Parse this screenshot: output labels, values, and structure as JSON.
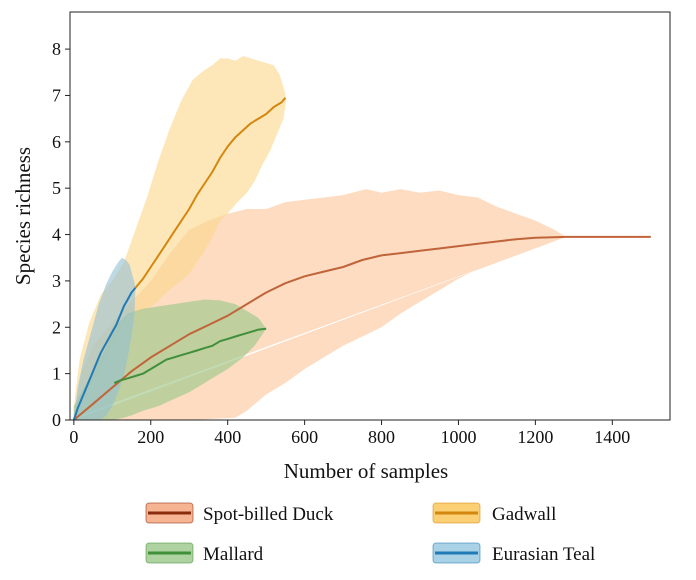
{
  "chart_data": {
    "type": "line",
    "title": "",
    "xlabel": "Number of samples",
    "ylabel": "Species richness",
    "xlim": [
      -10,
      1550
    ],
    "ylim": [
      0,
      8.8
    ],
    "xticks": [
      0,
      200,
      400,
      600,
      800,
      1000,
      1200,
      1400
    ],
    "yticks": [
      0,
      1,
      2,
      3,
      4,
      5,
      6,
      7,
      8
    ],
    "legend_position": "bottom",
    "series": [
      {
        "name": "Spot-billed Duck",
        "line_color": "#c0643a",
        "fill_color": "#fcc597",
        "legend_line": "#8b2b0d",
        "legend_fill": "#f7b493",
        "points": [
          [
            0,
            0
          ],
          [
            50,
            0.35
          ],
          [
            100,
            0.7
          ],
          [
            150,
            1.05
          ],
          [
            200,
            1.35
          ],
          [
            250,
            1.6
          ],
          [
            300,
            1.85
          ],
          [
            350,
            2.05
          ],
          [
            400,
            2.25
          ],
          [
            450,
            2.5
          ],
          [
            500,
            2.75
          ],
          [
            550,
            2.95
          ],
          [
            600,
            3.1
          ],
          [
            650,
            3.2
          ],
          [
            700,
            3.3
          ],
          [
            750,
            3.45
          ],
          [
            800,
            3.55
          ],
          [
            850,
            3.6
          ],
          [
            900,
            3.65
          ],
          [
            950,
            3.7
          ],
          [
            1000,
            3.75
          ],
          [
            1050,
            3.8
          ],
          [
            1100,
            3.85
          ],
          [
            1150,
            3.9
          ],
          [
            1200,
            3.93
          ],
          [
            1280,
            3.95
          ],
          [
            1400,
            3.95
          ],
          [
            1500,
            3.95
          ]
        ],
        "upper": [
          [
            0,
            0.05
          ],
          [
            20,
            1.0
          ],
          [
            50,
            1.6
          ],
          [
            100,
            2.1
          ],
          [
            150,
            2.55
          ],
          [
            200,
            3.0
          ],
          [
            250,
            3.6
          ],
          [
            300,
            4.1
          ],
          [
            350,
            4.3
          ],
          [
            400,
            4.45
          ],
          [
            450,
            4.55
          ],
          [
            500,
            4.55
          ],
          [
            550,
            4.7
          ],
          [
            600,
            4.75
          ],
          [
            650,
            4.8
          ],
          [
            700,
            4.85
          ],
          [
            760,
            4.98
          ],
          [
            800,
            4.9
          ],
          [
            850,
            4.98
          ],
          [
            900,
            4.9
          ],
          [
            950,
            4.95
          ],
          [
            1000,
            4.85
          ],
          [
            1050,
            4.8
          ],
          [
            1100,
            4.6
          ],
          [
            1150,
            4.45
          ],
          [
            1200,
            4.3
          ],
          [
            1250,
            4.1
          ],
          [
            1280,
            3.95
          ]
        ],
        "lower": [
          [
            0,
            0
          ],
          [
            300,
            0
          ],
          [
            420,
            0.05
          ],
          [
            450,
            0.2
          ],
          [
            500,
            0.55
          ],
          [
            550,
            0.8
          ],
          [
            600,
            1.1
          ],
          [
            650,
            1.35
          ],
          [
            700,
            1.6
          ],
          [
            750,
            1.8
          ],
          [
            800,
            2.0
          ],
          [
            850,
            2.3
          ],
          [
            900,
            2.55
          ],
          [
            950,
            2.8
          ],
          [
            1000,
            3.05
          ],
          [
            1050,
            3.25
          ],
          [
            1100,
            3.5
          ],
          [
            1150,
            3.65
          ],
          [
            1200,
            3.8
          ],
          [
            1280,
            3.95
          ]
        ]
      },
      {
        "name": "Gadwall",
        "line_color": "#d4870e",
        "fill_color": "#fcd78a",
        "legend_line": "#d4870e",
        "legend_fill": "#fbcf73",
        "points": [
          [
            160,
            2.85
          ],
          [
            180,
            3.05
          ],
          [
            200,
            3.3
          ],
          [
            220,
            3.55
          ],
          [
            240,
            3.8
          ],
          [
            260,
            4.05
          ],
          [
            280,
            4.3
          ],
          [
            300,
            4.55
          ],
          [
            320,
            4.85
          ],
          [
            340,
            5.1
          ],
          [
            360,
            5.35
          ],
          [
            380,
            5.65
          ],
          [
            400,
            5.9
          ],
          [
            420,
            6.1
          ],
          [
            440,
            6.25
          ],
          [
            460,
            6.4
          ],
          [
            480,
            6.5
          ],
          [
            500,
            6.6
          ],
          [
            520,
            6.75
          ],
          [
            540,
            6.85
          ],
          [
            550,
            6.95
          ]
        ],
        "upper": [
          [
            0,
            0.3
          ],
          [
            15,
            1.3
          ],
          [
            40,
            2.1
          ],
          [
            70,
            2.7
          ],
          [
            100,
            3.0
          ],
          [
            130,
            3.4
          ],
          [
            160,
            4.1
          ],
          [
            190,
            4.8
          ],
          [
            220,
            5.6
          ],
          [
            250,
            6.3
          ],
          [
            280,
            6.9
          ],
          [
            310,
            7.35
          ],
          [
            340,
            7.55
          ],
          [
            360,
            7.65
          ],
          [
            380,
            7.8
          ],
          [
            400,
            7.8
          ],
          [
            420,
            7.75
          ],
          [
            440,
            7.85
          ],
          [
            460,
            7.8
          ],
          [
            480,
            7.75
          ],
          [
            500,
            7.7
          ],
          [
            520,
            7.65
          ],
          [
            535,
            7.45
          ],
          [
            548,
            7.1
          ],
          [
            552,
            6.9
          ]
        ],
        "lower": [
          [
            552,
            6.9
          ],
          [
            545,
            6.5
          ],
          [
            530,
            6.2
          ],
          [
            510,
            5.8
          ],
          [
            490,
            5.5
          ],
          [
            470,
            5.15
          ],
          [
            450,
            4.9
          ],
          [
            420,
            4.65
          ],
          [
            400,
            4.45
          ],
          [
            380,
            4.3
          ],
          [
            360,
            3.95
          ],
          [
            340,
            3.65
          ],
          [
            320,
            3.4
          ],
          [
            300,
            3.15
          ],
          [
            270,
            2.95
          ],
          [
            240,
            2.75
          ],
          [
            210,
            2.5
          ],
          [
            190,
            2.4
          ],
          [
            160,
            2.3
          ],
          [
            140,
            2.25
          ],
          [
            100,
            1.6
          ],
          [
            60,
            1.0
          ],
          [
            30,
            0.5
          ],
          [
            10,
            0.2
          ],
          [
            0,
            0.1
          ]
        ]
      },
      {
        "name": "Mallard",
        "line_color": "#3f8f3b",
        "fill_color": "#98c687",
        "legend_line": "#3f8f3b",
        "legend_fill": "#aed3a0",
        "points": [
          [
            105,
            0.8
          ],
          [
            120,
            0.85
          ],
          [
            140,
            0.9
          ],
          [
            160,
            0.95
          ],
          [
            180,
            1.0
          ],
          [
            200,
            1.1
          ],
          [
            220,
            1.2
          ],
          [
            240,
            1.3
          ],
          [
            260,
            1.35
          ],
          [
            280,
            1.4
          ],
          [
            300,
            1.45
          ],
          [
            320,
            1.5
          ],
          [
            340,
            1.55
          ],
          [
            360,
            1.6
          ],
          [
            380,
            1.7
          ],
          [
            400,
            1.75
          ],
          [
            420,
            1.8
          ],
          [
            440,
            1.85
          ],
          [
            460,
            1.9
          ],
          [
            480,
            1.95
          ],
          [
            500,
            1.97
          ]
        ],
        "upper": [
          [
            0,
            0.3
          ],
          [
            40,
            0.9
          ],
          [
            80,
            1.5
          ],
          [
            110,
            2.05
          ],
          [
            140,
            2.3
          ],
          [
            180,
            2.4
          ],
          [
            220,
            2.45
          ],
          [
            260,
            2.5
          ],
          [
            300,
            2.55
          ],
          [
            340,
            2.6
          ],
          [
            380,
            2.58
          ],
          [
            420,
            2.5
          ],
          [
            450,
            2.35
          ],
          [
            480,
            2.2
          ],
          [
            500,
            1.97
          ]
        ],
        "lower": [
          [
            500,
            1.97
          ],
          [
            470,
            1.6
          ],
          [
            440,
            1.35
          ],
          [
            400,
            1.1
          ],
          [
            360,
            0.9
          ],
          [
            330,
            0.75
          ],
          [
            300,
            0.6
          ],
          [
            260,
            0.45
          ],
          [
            220,
            0.3
          ],
          [
            180,
            0.2
          ],
          [
            150,
            0.1
          ],
          [
            130,
            0.05
          ],
          [
            100,
            0
          ],
          [
            0,
            0
          ]
        ]
      },
      {
        "name": "Eurasian Teal",
        "line_color": "#1f7ab5",
        "fill_color": "#93bfd2",
        "legend_line": "#1f7ab5",
        "legend_fill": "#a9d2e6",
        "points": [
          [
            0,
            0
          ],
          [
            10,
            0.25
          ],
          [
            20,
            0.45
          ],
          [
            30,
            0.65
          ],
          [
            40,
            0.85
          ],
          [
            50,
            1.05
          ],
          [
            60,
            1.25
          ],
          [
            70,
            1.45
          ],
          [
            80,
            1.6
          ],
          [
            90,
            1.75
          ],
          [
            100,
            1.9
          ],
          [
            110,
            2.05
          ],
          [
            120,
            2.25
          ],
          [
            130,
            2.45
          ],
          [
            140,
            2.6
          ],
          [
            150,
            2.75
          ],
          [
            160,
            2.85
          ]
        ],
        "upper": [
          [
            0,
            0.05
          ],
          [
            10,
            0.7
          ],
          [
            25,
            1.3
          ],
          [
            45,
            1.9
          ],
          [
            65,
            2.5
          ],
          [
            85,
            2.95
          ],
          [
            100,
            3.2
          ],
          [
            115,
            3.4
          ],
          [
            125,
            3.5
          ],
          [
            135,
            3.45
          ],
          [
            145,
            3.35
          ],
          [
            150,
            3.2
          ],
          [
            158,
            2.95
          ],
          [
            160,
            2.85
          ]
        ],
        "lower": [
          [
            160,
            2.85
          ],
          [
            158,
            2.3
          ],
          [
            150,
            1.8
          ],
          [
            140,
            1.35
          ],
          [
            130,
            0.95
          ],
          [
            115,
            0.6
          ],
          [
            100,
            0.3
          ],
          [
            85,
            0.1
          ],
          [
            70,
            0
          ],
          [
            0,
            0
          ]
        ]
      }
    ]
  }
}
